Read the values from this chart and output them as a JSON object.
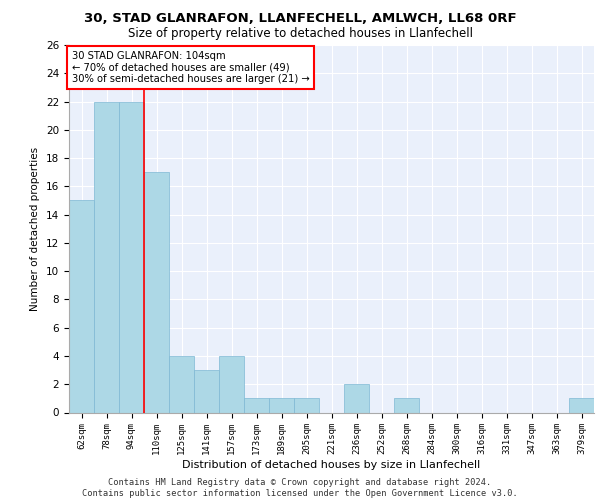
{
  "title1": "30, STAD GLANRAFON, LLANFECHELL, AMLWCH, LL68 0RF",
  "title2": "Size of property relative to detached houses in Llanfechell",
  "xlabel": "Distribution of detached houses by size in Llanfechell",
  "ylabel": "Number of detached properties",
  "categories": [
    "62sqm",
    "78sqm",
    "94sqm",
    "110sqm",
    "125sqm",
    "141sqm",
    "157sqm",
    "173sqm",
    "189sqm",
    "205sqm",
    "221sqm",
    "236sqm",
    "252sqm",
    "268sqm",
    "284sqm",
    "300sqm",
    "316sqm",
    "331sqm",
    "347sqm",
    "363sqm",
    "379sqm"
  ],
  "values": [
    15,
    22,
    22,
    17,
    4,
    3,
    4,
    1,
    1,
    1,
    0,
    2,
    0,
    1,
    0,
    0,
    0,
    0,
    0,
    0,
    1
  ],
  "bar_color": "#add8e6",
  "bar_edgecolor": "#7eb8d4",
  "vline_x": 2.5,
  "annotation_text": "30 STAD GLANRAFON: 104sqm\n← 70% of detached houses are smaller (49)\n30% of semi-detached houses are larger (21) →",
  "annotation_box_color": "white",
  "annotation_box_edgecolor": "red",
  "vline_color": "red",
  "ylim": [
    0,
    26
  ],
  "yticks": [
    0,
    2,
    4,
    6,
    8,
    10,
    12,
    14,
    16,
    18,
    20,
    22,
    24,
    26
  ],
  "footer": "Contains HM Land Registry data © Crown copyright and database right 2024.\nContains public sector information licensed under the Open Government Licence v3.0.",
  "bg_color": "#eaf0fb",
  "grid_color": "white"
}
